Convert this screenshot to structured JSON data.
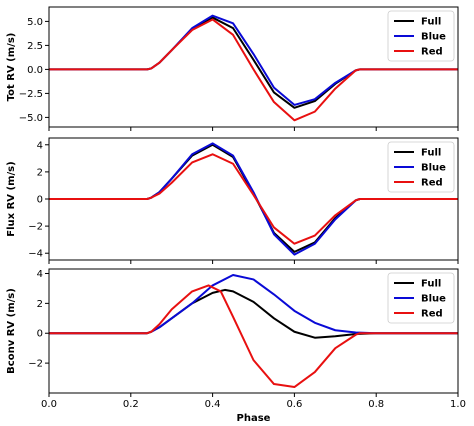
{
  "chart_data": [
    {
      "type": "line",
      "ylabel": "Tot RV (m/s)",
      "xlim": [
        0.0,
        1.0
      ],
      "ylim": [
        -6.0,
        6.5
      ],
      "yticks": [
        5.0,
        2.5,
        0.0,
        -2.5,
        -5.0
      ],
      "ytick_labels": [
        "5.0",
        "2.5",
        "0.0",
        "−2.5",
        "−5.0"
      ],
      "legend": {
        "location": "top-right"
      },
      "series": [
        {
          "name": "Full",
          "color": "#000000",
          "x": [
            0.0,
            0.24,
            0.25,
            0.27,
            0.3,
            0.35,
            0.4,
            0.45,
            0.5,
            0.55,
            0.6,
            0.65,
            0.7,
            0.75,
            0.76,
            1.0
          ],
          "y": [
            0,
            0,
            0.1,
            0.7,
            2.0,
            4.2,
            5.4,
            4.3,
            1.0,
            -2.4,
            -4.0,
            -3.3,
            -1.5,
            -0.1,
            0,
            0
          ]
        },
        {
          "name": "Blue",
          "color": "#0a0ad6",
          "x": [
            0.0,
            0.24,
            0.25,
            0.27,
            0.3,
            0.35,
            0.4,
            0.45,
            0.5,
            0.55,
            0.6,
            0.65,
            0.7,
            0.75,
            0.76,
            1.0
          ],
          "y": [
            0,
            0,
            0.1,
            0.7,
            2.0,
            4.3,
            5.6,
            4.8,
            1.6,
            -1.9,
            -3.7,
            -3.1,
            -1.4,
            -0.1,
            0,
            0
          ]
        },
        {
          "name": "Red",
          "color": "#e81010",
          "x": [
            0.0,
            0.24,
            0.25,
            0.27,
            0.3,
            0.35,
            0.4,
            0.45,
            0.5,
            0.55,
            0.6,
            0.65,
            0.7,
            0.75,
            0.76,
            1.0
          ],
          "y": [
            0,
            0,
            0.1,
            0.7,
            2.0,
            4.1,
            5.2,
            3.6,
            0.0,
            -3.4,
            -5.3,
            -4.4,
            -2.0,
            -0.1,
            0,
            0
          ]
        }
      ]
    },
    {
      "type": "line",
      "ylabel": "Flux RV (m/s)",
      "xlim": [
        0.0,
        1.0
      ],
      "ylim": [
        -4.5,
        4.5
      ],
      "yticks": [
        4,
        2,
        0,
        -2,
        -4
      ],
      "ytick_labels": [
        "4",
        "2",
        "0",
        "−2",
        "−4"
      ],
      "legend": {
        "location": "top-right"
      },
      "series": [
        {
          "name": "Full",
          "color": "#000000",
          "x": [
            0.0,
            0.24,
            0.25,
            0.27,
            0.3,
            0.35,
            0.4,
            0.45,
            0.5,
            0.55,
            0.6,
            0.65,
            0.7,
            0.75,
            0.76,
            1.0
          ],
          "y": [
            0,
            0,
            0.1,
            0.5,
            1.5,
            3.2,
            4.0,
            3.1,
            0.4,
            -2.5,
            -3.9,
            -3.2,
            -1.4,
            -0.1,
            0,
            0
          ]
        },
        {
          "name": "Blue",
          "color": "#0a0ad6",
          "x": [
            0.0,
            0.24,
            0.25,
            0.27,
            0.3,
            0.35,
            0.4,
            0.45,
            0.5,
            0.55,
            0.6,
            0.65,
            0.7,
            0.75,
            0.76,
            1.0
          ],
          "y": [
            0,
            0,
            0.1,
            0.5,
            1.5,
            3.3,
            4.1,
            3.2,
            0.5,
            -2.6,
            -4.1,
            -3.3,
            -1.5,
            -0.1,
            0,
            0
          ]
        },
        {
          "name": "Red",
          "color": "#e81010",
          "x": [
            0.0,
            0.24,
            0.25,
            0.27,
            0.3,
            0.35,
            0.4,
            0.45,
            0.5,
            0.55,
            0.6,
            0.65,
            0.7,
            0.75,
            0.76,
            1.0
          ],
          "y": [
            0,
            0,
            0.1,
            0.4,
            1.2,
            2.7,
            3.3,
            2.6,
            0.3,
            -2.1,
            -3.3,
            -2.7,
            -1.2,
            -0.1,
            0,
            0
          ]
        }
      ]
    },
    {
      "type": "line",
      "xlabel": "Phase",
      "ylabel": "Bconv RV (m/s)",
      "xlim": [
        0.0,
        1.0
      ],
      "ylim": [
        -4.0,
        4.3
      ],
      "yticks": [
        4,
        2,
        0,
        -2
      ],
      "ytick_labels": [
        "4",
        "2",
        "0",
        "−2"
      ],
      "xticks": [
        0.0,
        0.2,
        0.4,
        0.6,
        0.8,
        1.0
      ],
      "xtick_labels": [
        "0.0",
        "0.2",
        "0.4",
        "0.6",
        "0.8",
        "1.0"
      ],
      "legend": {
        "location": "top-right"
      },
      "series": [
        {
          "name": "Full",
          "color": "#000000",
          "x": [
            0.0,
            0.24,
            0.25,
            0.27,
            0.3,
            0.35,
            0.4,
            0.43,
            0.45,
            0.5,
            0.55,
            0.6,
            0.65,
            0.7,
            0.75,
            0.8,
            1.0
          ],
          "y": [
            0,
            0,
            0.1,
            0.4,
            1.0,
            2.0,
            2.7,
            2.9,
            2.8,
            2.1,
            1.0,
            0.1,
            -0.3,
            -0.2,
            -0.05,
            0,
            0
          ]
        },
        {
          "name": "Blue",
          "color": "#0a0ad6",
          "x": [
            0.0,
            0.24,
            0.25,
            0.27,
            0.3,
            0.35,
            0.4,
            0.45,
            0.5,
            0.55,
            0.6,
            0.65,
            0.7,
            0.75,
            0.8,
            1.0
          ],
          "y": [
            0,
            0,
            0.1,
            0.4,
            1.0,
            2.0,
            3.2,
            3.9,
            3.6,
            2.6,
            1.5,
            0.7,
            0.2,
            0.05,
            0,
            0
          ]
        },
        {
          "name": "Red",
          "color": "#e81010",
          "x": [
            0.0,
            0.24,
            0.25,
            0.27,
            0.3,
            0.35,
            0.39,
            0.42,
            0.45,
            0.5,
            0.55,
            0.6,
            0.65,
            0.7,
            0.75,
            0.76,
            1.0
          ],
          "y": [
            0,
            0,
            0.1,
            0.6,
            1.6,
            2.8,
            3.2,
            2.8,
            1.1,
            -1.8,
            -3.4,
            -3.6,
            -2.6,
            -1.0,
            -0.1,
            0,
            0
          ]
        }
      ]
    }
  ]
}
